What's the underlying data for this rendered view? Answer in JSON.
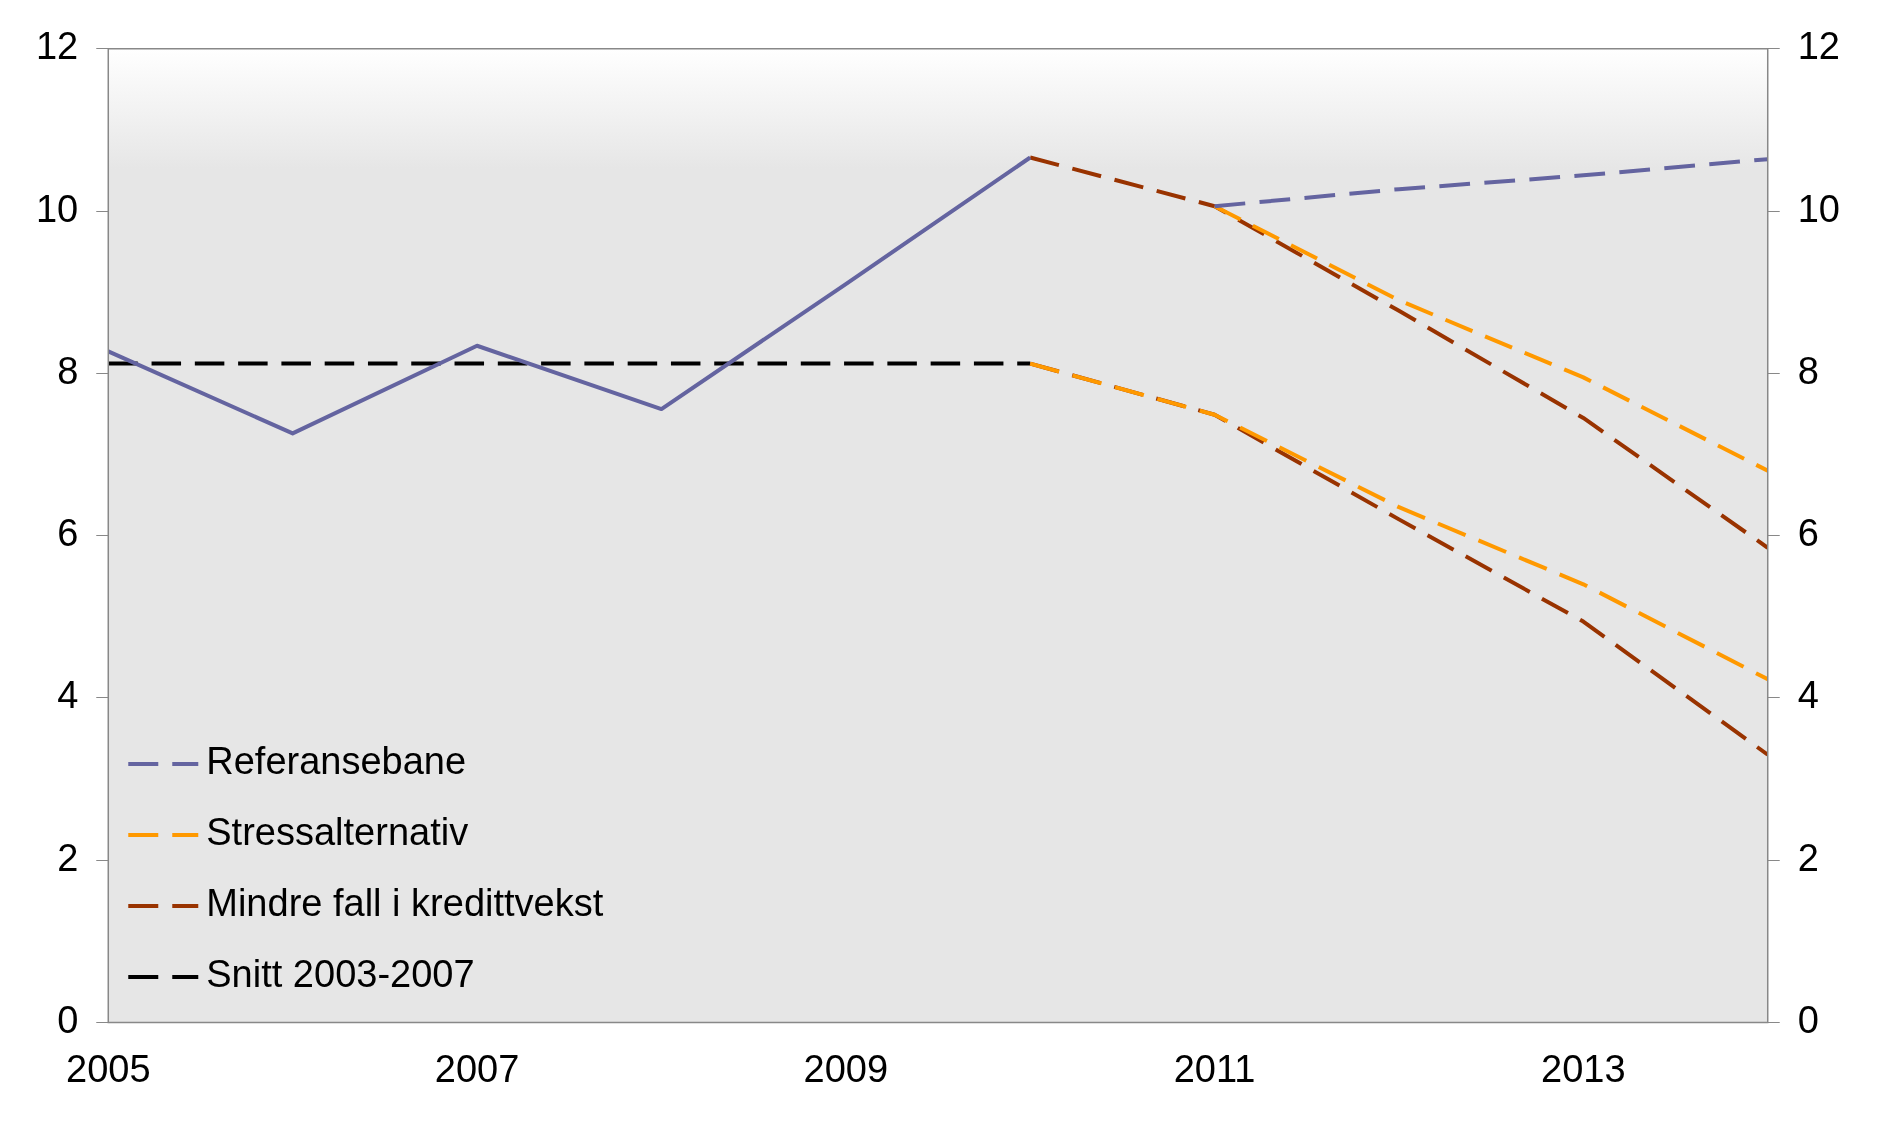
{
  "chart_data": {
    "type": "line",
    "xlim": [
      2005,
      2014
    ],
    "xticks": [
      2005,
      2007,
      2009,
      2011,
      2013
    ],
    "ylim": [
      0,
      12
    ],
    "yticks": [
      0,
      2,
      4,
      6,
      8,
      10,
      12
    ],
    "y2lim": [
      0,
      12
    ],
    "y2ticks": [
      0,
      2,
      4,
      6,
      8,
      10,
      12
    ],
    "grid": false,
    "legend": "bottom left",
    "series": [
      {
        "color": "#6464a0",
        "line_style": "solid",
        "x": [
          2005,
          2006,
          2007,
          2008,
          2009,
          2010
        ],
        "values": [
          8.27,
          7.26,
          8.34,
          7.56,
          9.1,
          10.66
        ]
      },
      {
        "name": "Referansebane",
        "color": "#6464a0",
        "line_style": "dashed",
        "x": [
          2011,
          2012,
          2013,
          2014
        ],
        "values": [
          10.06,
          10.27,
          10.44,
          10.64
        ]
      },
      {
        "name": "Stressalternativ",
        "color": "#ff9900",
        "line_style": "dashed",
        "x": [
          2011,
          2012,
          2013,
          2014
        ],
        "values": [
          10.06,
          8.9,
          7.95,
          6.8
        ]
      },
      {
        "name": "Mindre fall i kredittvekst",
        "color": "#993300",
        "line_style": "dashed",
        "x": [
          2010,
          2011,
          2012,
          2013,
          2014
        ],
        "values": [
          10.66,
          10.06,
          8.77,
          7.45,
          5.85
        ]
      },
      {
        "color": "#ff9900",
        "line_style": "dashed",
        "x": [
          2010,
          2011,
          2012,
          2013,
          2014
        ],
        "values": [
          8.12,
          7.49,
          6.35,
          5.4,
          4.23
        ]
      },
      {
        "color": "#993300",
        "line_style": "dashed",
        "x": [
          2010,
          2011,
          2012,
          2013,
          2014
        ],
        "values": [
          8.12,
          7.49,
          6.2,
          4.94,
          3.3
        ]
      },
      {
        "name": "Snitt 2003-2007",
        "color": "#000000",
        "line_style": "dashed",
        "x": [
          2005,
          2010
        ],
        "values": [
          8.12,
          8.12
        ]
      }
    ]
  }
}
